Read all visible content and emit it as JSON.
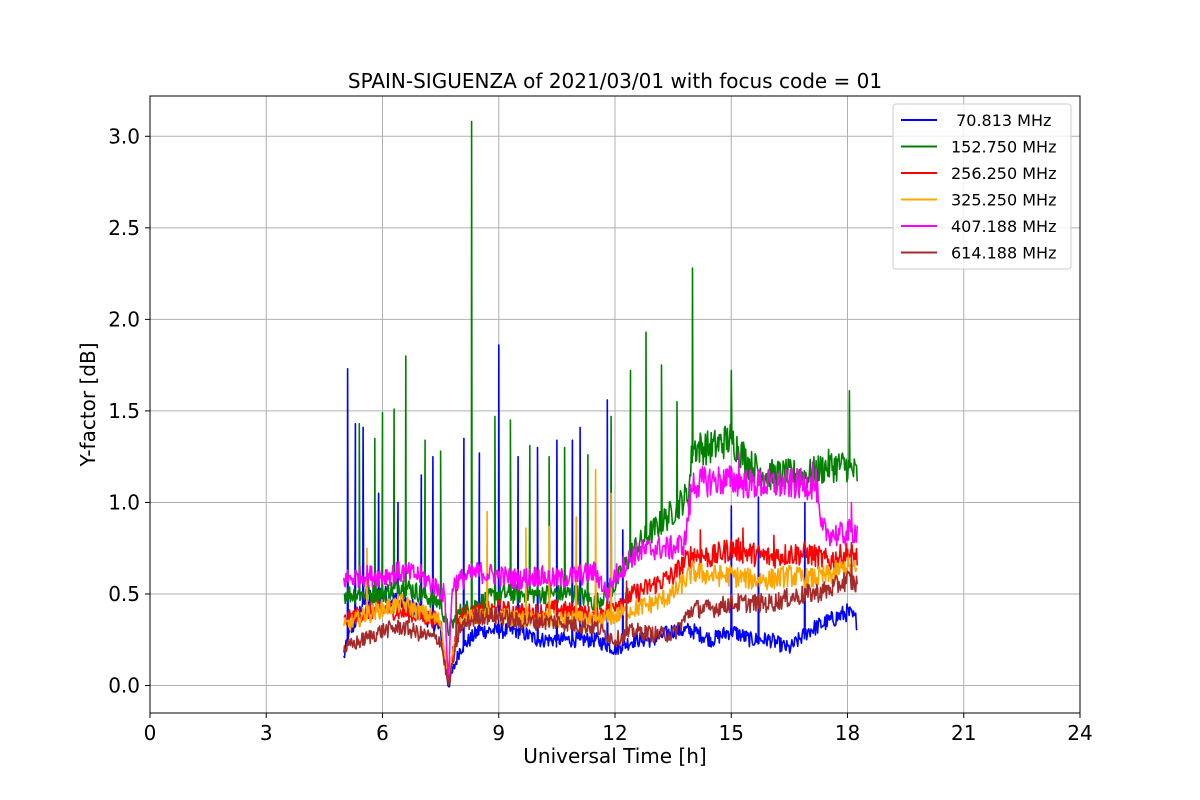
{
  "chart_data": {
    "type": "line",
    "title": "SPAIN-SIGUENZA of 2021/03/01 with focus code = 01",
    "xlabel": "Universal Time [h]",
    "ylabel": "Y-factor [dB]",
    "xlim": [
      0,
      24
    ],
    "ylim": [
      -0.15,
      3.22
    ],
    "xticks": [
      0,
      3,
      6,
      9,
      12,
      15,
      18,
      21,
      24
    ],
    "xtick_labels": [
      "0",
      "3",
      "6",
      "9",
      "12",
      "15",
      "18",
      "21",
      "24"
    ],
    "yticks": [
      0.0,
      0.5,
      1.0,
      1.5,
      2.0,
      2.5,
      3.0
    ],
    "ytick_labels": [
      "0.0",
      "0.5",
      "1.0",
      "1.5",
      "2.0",
      "2.5",
      "3.0"
    ],
    "grid": true,
    "legend_position": "top-right",
    "series": [
      {
        "name": " 70.813 MHz",
        "color": "#0000ff",
        "x": [
          5.0,
          5.1,
          5.5,
          6.0,
          6.5,
          7.0,
          7.5,
          7.7,
          8.0,
          8.5,
          9.0,
          9.5,
          10.0,
          10.5,
          11.0,
          11.5,
          12.0,
          12.5,
          13.0,
          13.5,
          14.0,
          14.5,
          15.0,
          15.5,
          16.0,
          16.5,
          17.0,
          17.5,
          18.0,
          18.25
        ],
        "values": [
          0.15,
          0.25,
          0.45,
          0.5,
          0.45,
          0.4,
          0.3,
          0.0,
          0.2,
          0.3,
          0.3,
          0.3,
          0.25,
          0.25,
          0.25,
          0.25,
          0.2,
          0.25,
          0.25,
          0.3,
          0.3,
          0.25,
          0.3,
          0.25,
          0.25,
          0.2,
          0.3,
          0.35,
          0.4,
          0.35
        ],
        "spikes": [
          [
            5.1,
            1.73
          ],
          [
            5.3,
            1.43
          ],
          [
            5.5,
            1.41
          ],
          [
            5.9,
            1.05
          ],
          [
            6.4,
            1.0
          ],
          [
            7.0,
            1.15
          ],
          [
            7.3,
            1.25
          ],
          [
            8.1,
            1.35
          ],
          [
            8.5,
            1.27
          ],
          [
            9.0,
            1.86
          ],
          [
            9.5,
            1.25
          ],
          [
            10.0,
            1.3
          ],
          [
            10.5,
            1.34
          ],
          [
            10.9,
            1.34
          ],
          [
            11.1,
            1.41
          ],
          [
            11.8,
            1.56
          ],
          [
            12.2,
            0.85
          ],
          [
            15.0,
            0.98
          ],
          [
            15.7,
            1.03
          ],
          [
            16.9,
            1.0
          ]
        ]
      },
      {
        "name": "152.750 MHz",
        "color": "#008000",
        "x": [
          5.0,
          5.5,
          6.0,
          6.5,
          7.0,
          7.5,
          7.7,
          8.0,
          8.5,
          9.0,
          9.5,
          10.0,
          10.5,
          11.0,
          11.5,
          12.0,
          12.5,
          13.0,
          13.5,
          13.9,
          14.0,
          14.5,
          15.0,
          15.5,
          16.0,
          16.5,
          17.0,
          17.5,
          18.0,
          18.25
        ],
        "values": [
          0.5,
          0.5,
          0.5,
          0.55,
          0.5,
          0.45,
          0.3,
          0.4,
          0.45,
          0.5,
          0.5,
          0.5,
          0.5,
          0.5,
          0.45,
          0.55,
          0.75,
          0.85,
          0.95,
          1.05,
          1.3,
          1.3,
          1.35,
          1.2,
          1.15,
          1.15,
          1.15,
          1.2,
          1.2,
          1.15
        ],
        "spikes": [
          [
            5.4,
            1.43
          ],
          [
            5.8,
            1.35
          ],
          [
            6.0,
            1.49
          ],
          [
            6.3,
            1.51
          ],
          [
            6.6,
            1.8
          ],
          [
            7.1,
            1.34
          ],
          [
            7.5,
            1.28
          ],
          [
            8.3,
            3.08
          ],
          [
            8.9,
            1.47
          ],
          [
            9.3,
            1.45
          ],
          [
            9.8,
            1.31
          ],
          [
            10.3,
            1.25
          ],
          [
            10.7,
            1.3
          ],
          [
            11.3,
            1.26
          ],
          [
            11.9,
            1.47
          ],
          [
            12.4,
            1.72
          ],
          [
            12.8,
            1.93
          ],
          [
            13.2,
            1.75
          ],
          [
            13.6,
            1.55
          ],
          [
            14.0,
            2.28
          ],
          [
            15.0,
            1.72
          ],
          [
            18.05,
            1.61
          ]
        ]
      },
      {
        "name": "256.250 MHz",
        "color": "#ff0000",
        "x": [
          5.0,
          5.5,
          6.0,
          6.5,
          7.0,
          7.5,
          7.7,
          8.0,
          8.5,
          9.0,
          9.5,
          10.0,
          10.5,
          11.0,
          11.5,
          12.0,
          12.5,
          13.0,
          13.5,
          14.0,
          14.5,
          15.0,
          15.5,
          16.0,
          16.5,
          17.0,
          17.5,
          18.0,
          18.25
        ],
        "values": [
          0.35,
          0.4,
          0.42,
          0.4,
          0.38,
          0.35,
          0.05,
          0.38,
          0.4,
          0.42,
          0.4,
          0.4,
          0.42,
          0.4,
          0.38,
          0.45,
          0.5,
          0.55,
          0.6,
          0.72,
          0.7,
          0.75,
          0.72,
          0.7,
          0.72,
          0.72,
          0.68,
          0.72,
          0.7
        ],
        "spikes": [
          [
            14.2,
            0.85
          ],
          [
            15.3,
            0.86
          ],
          [
            16.1,
            0.82
          ]
        ]
      },
      {
        "name": "325.250 MHz",
        "color": "#ffa500",
        "x": [
          5.0,
          5.5,
          6.0,
          6.5,
          7.0,
          7.5,
          7.7,
          8.0,
          8.5,
          9.0,
          9.5,
          10.0,
          10.5,
          11.0,
          11.5,
          12.0,
          12.5,
          13.0,
          13.5,
          14.0,
          14.5,
          15.0,
          15.5,
          16.0,
          16.5,
          17.0,
          17.5,
          18.0,
          18.25
        ],
        "values": [
          0.32,
          0.38,
          0.42,
          0.45,
          0.4,
          0.35,
          0.05,
          0.35,
          0.38,
          0.38,
          0.36,
          0.36,
          0.36,
          0.36,
          0.35,
          0.38,
          0.42,
          0.45,
          0.5,
          0.62,
          0.6,
          0.6,
          0.58,
          0.58,
          0.6,
          0.58,
          0.6,
          0.65,
          0.62
        ],
        "spikes": [
          [
            5.6,
            0.75
          ],
          [
            8.7,
            0.95
          ],
          [
            9.7,
            0.86
          ],
          [
            10.3,
            0.87
          ],
          [
            11.0,
            0.92
          ],
          [
            11.5,
            1.18
          ],
          [
            11.9,
            1.05
          ]
        ]
      },
      {
        "name": "407.188 MHz",
        "color": "#ff00ff",
        "x": [
          5.0,
          5.5,
          6.0,
          6.5,
          7.0,
          7.3,
          7.6,
          7.7,
          7.8,
          8.2,
          8.5,
          9.0,
          9.5,
          10.0,
          10.5,
          11.0,
          11.5,
          11.8,
          12.0,
          12.5,
          13.0,
          13.5,
          13.8,
          14.0,
          14.5,
          15.0,
          15.5,
          16.0,
          16.5,
          17.0,
          17.2,
          17.3,
          17.8,
          18.25
        ],
        "values": [
          0.58,
          0.6,
          0.6,
          0.62,
          0.6,
          0.55,
          0.5,
          0.02,
          0.55,
          0.6,
          0.62,
          0.6,
          0.58,
          0.6,
          0.58,
          0.6,
          0.62,
          0.5,
          0.6,
          0.72,
          0.75,
          0.75,
          0.78,
          1.1,
          1.12,
          1.12,
          1.1,
          1.1,
          1.1,
          1.1,
          1.1,
          0.85,
          0.82,
          0.85
        ],
        "spikes": [
          [
            15.2,
            1.27
          ],
          [
            17.1,
            1.22
          ],
          [
            18.1,
            1.0
          ]
        ]
      },
      {
        "name": "614.188 MHz",
        "color": "#a52a2a",
        "x": [
          5.0,
          5.5,
          6.0,
          6.5,
          7.0,
          7.5,
          7.7,
          8.0,
          8.5,
          9.0,
          9.5,
          10.0,
          10.5,
          11.0,
          11.5,
          12.0,
          12.5,
          13.0,
          13.5,
          14.0,
          14.5,
          15.0,
          15.5,
          16.0,
          16.5,
          17.0,
          17.5,
          18.0,
          18.25
        ],
        "values": [
          0.2,
          0.25,
          0.3,
          0.32,
          0.28,
          0.25,
          0.0,
          0.32,
          0.38,
          0.38,
          0.35,
          0.35,
          0.35,
          0.33,
          0.32,
          0.25,
          0.3,
          0.28,
          0.28,
          0.42,
          0.42,
          0.45,
          0.45,
          0.45,
          0.48,
          0.5,
          0.52,
          0.58,
          0.55
        ],
        "spikes": [
          [
            7.9,
            0.52
          ],
          [
            12.3,
            0.57
          ],
          [
            18.1,
            0.78
          ]
        ]
      }
    ]
  }
}
